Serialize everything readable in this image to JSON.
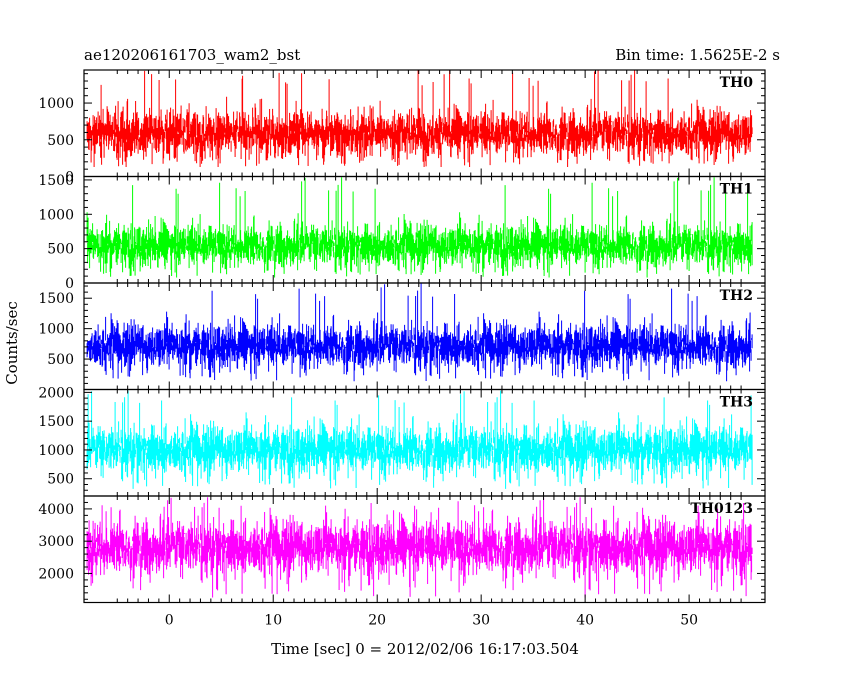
{
  "chart_data": {
    "type": "line",
    "title": "ae120206161703_wam2_bst",
    "subtitle": "Bin time: 1.5625E-2 s",
    "xlabel": "Time [sec] 0 = 2012/02/06 16:17:03.504",
    "ylabel": "Counts/sec",
    "xlim": [
      -8.2,
      57.3
    ],
    "x_ticks": [
      0,
      10,
      20,
      30,
      40,
      50
    ],
    "data_x_range": [
      -7.9,
      56.1
    ],
    "bin_time": 0.015625,
    "panels": [
      {
        "name": "TH0",
        "color": "#ff0000",
        "ylim": [
          0,
          1450
        ],
        "y_ticks": [
          0,
          500,
          1000
        ],
        "base": 130,
        "center": 580,
        "spread": 180,
        "peak": 1450
      },
      {
        "name": "TH1",
        "color": "#00ff00",
        "ylim": [
          0,
          1550
        ],
        "y_ticks": [
          0,
          500,
          1000,
          1500
        ],
        "base": 80,
        "center": 540,
        "spread": 180,
        "peak": 1500
      },
      {
        "name": "TH2",
        "color": "#0000ff",
        "ylim": [
          0,
          1750
        ],
        "y_ticks": [
          500,
          1000,
          1500
        ],
        "base": 120,
        "center": 710,
        "spread": 210,
        "peak": 1700
      },
      {
        "name": "TH3",
        "color": "#00ffff",
        "ylim": [
          200,
          2050
        ],
        "y_ticks": [
          500,
          1000,
          1500,
          2000
        ],
        "base": 300,
        "center": 1000,
        "spread": 240,
        "peak": 1990
      },
      {
        "name": "TH0123",
        "color": "#ff00ff",
        "ylim": [
          1100,
          4400
        ],
        "y_ticks": [
          2000,
          3000,
          4000
        ],
        "base": 1200,
        "center": 2800,
        "spread": 480,
        "peak": 4300
      }
    ]
  }
}
